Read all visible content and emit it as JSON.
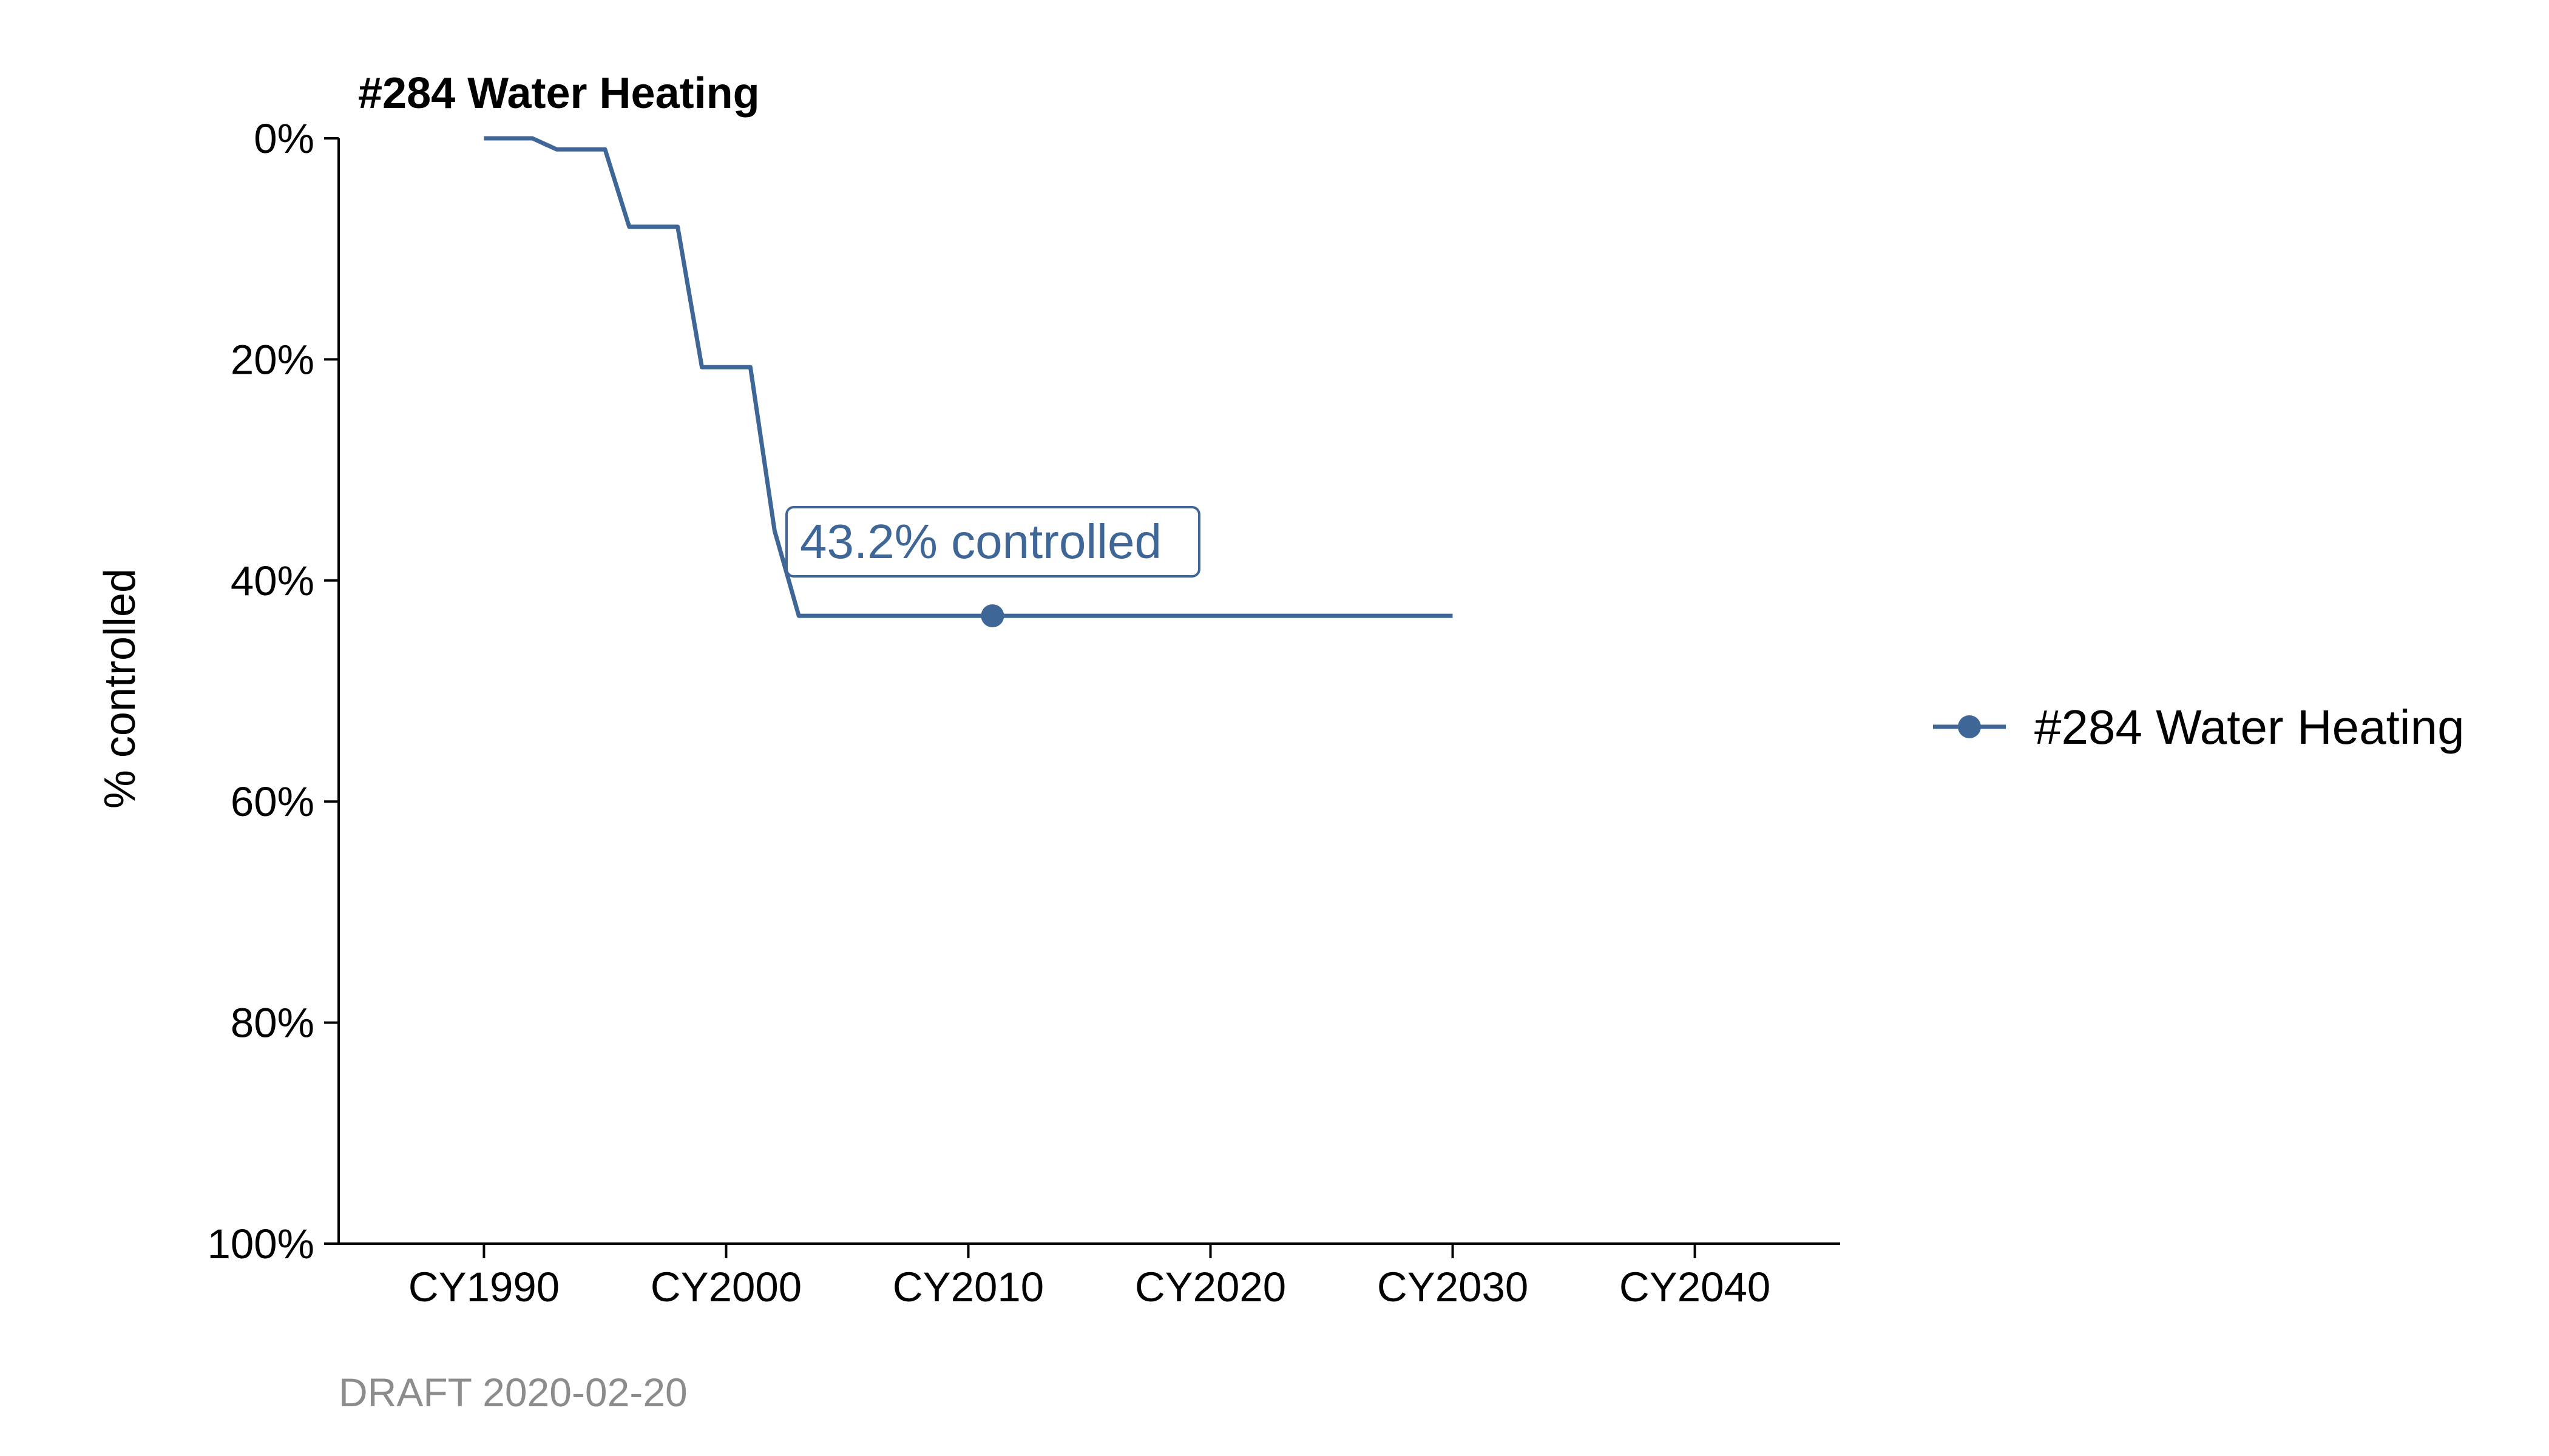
{
  "colors": {
    "series": "#3e6696",
    "caption": "#8c8c8c",
    "axis": "#000000"
  },
  "chart_data": {
    "type": "line",
    "title": "#284 Water Heating",
    "xlabel": "",
    "ylabel": "% controlled",
    "x_tick_labels": [
      "CY1990",
      "CY2000",
      "CY2010",
      "CY2020",
      "CY2030",
      "CY2040"
    ],
    "x_ticks": [
      1990,
      2000,
      2010,
      2020,
      2030,
      2040
    ],
    "xlim": [
      1984,
      2046
    ],
    "y_tick_labels": [
      "0%",
      "20%",
      "40%",
      "60%",
      "80%",
      "100%"
    ],
    "y_ticks": [
      0,
      20,
      40,
      60,
      80,
      100
    ],
    "ylim": [
      0,
      100
    ],
    "y_inverted": true,
    "grid": false,
    "legend_position": "right",
    "series": [
      {
        "name": "#284 Water Heating",
        "x": [
          1990,
          1992,
          1993,
          1995,
          1996,
          1998,
          1999,
          2001,
          2002,
          2003,
          2011,
          2030
        ],
        "y": [
          0,
          0,
          1,
          1,
          8,
          8,
          20.7,
          20.7,
          35.5,
          43.2,
          43.2,
          43.2
        ]
      }
    ],
    "highlight_point": {
      "x": 2011,
      "y": 43.2
    },
    "annotation": "43.2% controlled",
    "caption": "DRAFT 2020-02-20"
  }
}
